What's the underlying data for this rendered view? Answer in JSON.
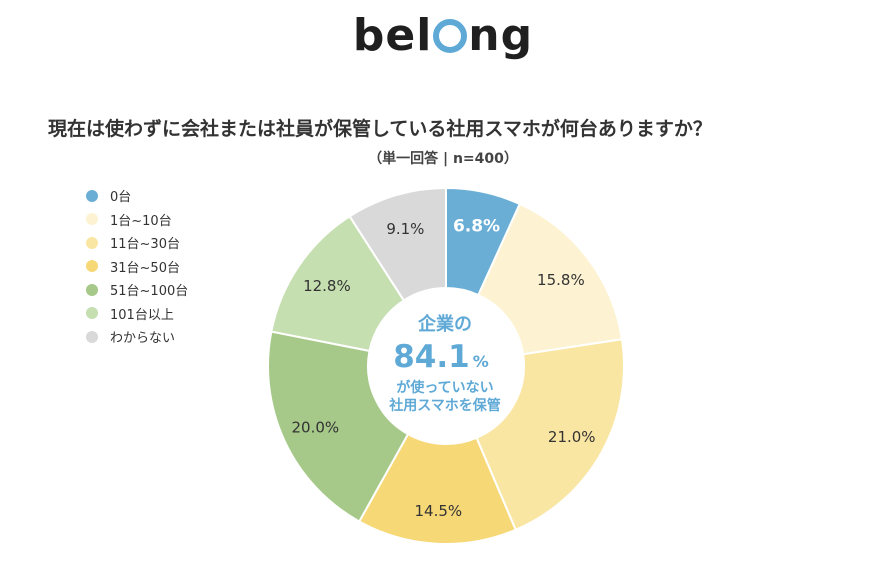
{
  "brand": {
    "before": "bel",
    "after": "ng"
  },
  "header": {
    "title": "現在は使わずに会社または社員が保管している社用スマホが何台ありますか？",
    "subtitle": "（単一回答 | n=400）"
  },
  "center": {
    "line1": "企業の",
    "big": "84.1",
    "pct": "%",
    "line2": "が使っていない",
    "line3": "社用スマホを保管"
  },
  "chart_data": {
    "type": "pie",
    "title": "現在は使わずに会社または社員が保管している社用スマホが何台ありますか？",
    "legend_position": "left",
    "donut": true,
    "series": [
      {
        "name": "0台",
        "value": 6.8,
        "label": "6.8%",
        "color": "#6aaed6"
      },
      {
        "name": "1台~10台",
        "value": 15.8,
        "label": "15.8%",
        "color": "#fdf3d2"
      },
      {
        "name": "11台~30台",
        "value": 21.0,
        "label": "21.0%",
        "color": "#fae6a3"
      },
      {
        "name": "31台~50台",
        "value": 14.5,
        "label": "14.5%",
        "color": "#f7d877"
      },
      {
        "name": "51台~100台",
        "value": 20.0,
        "label": "20.0%",
        "color": "#a6c98a"
      },
      {
        "name": "101台以上",
        "value": 12.8,
        "label": "12.8%",
        "color": "#c5dfb0"
      },
      {
        "name": "わからない",
        "value": 9.1,
        "label": "9.1%",
        "color": "#d9d9d9"
      }
    ]
  }
}
